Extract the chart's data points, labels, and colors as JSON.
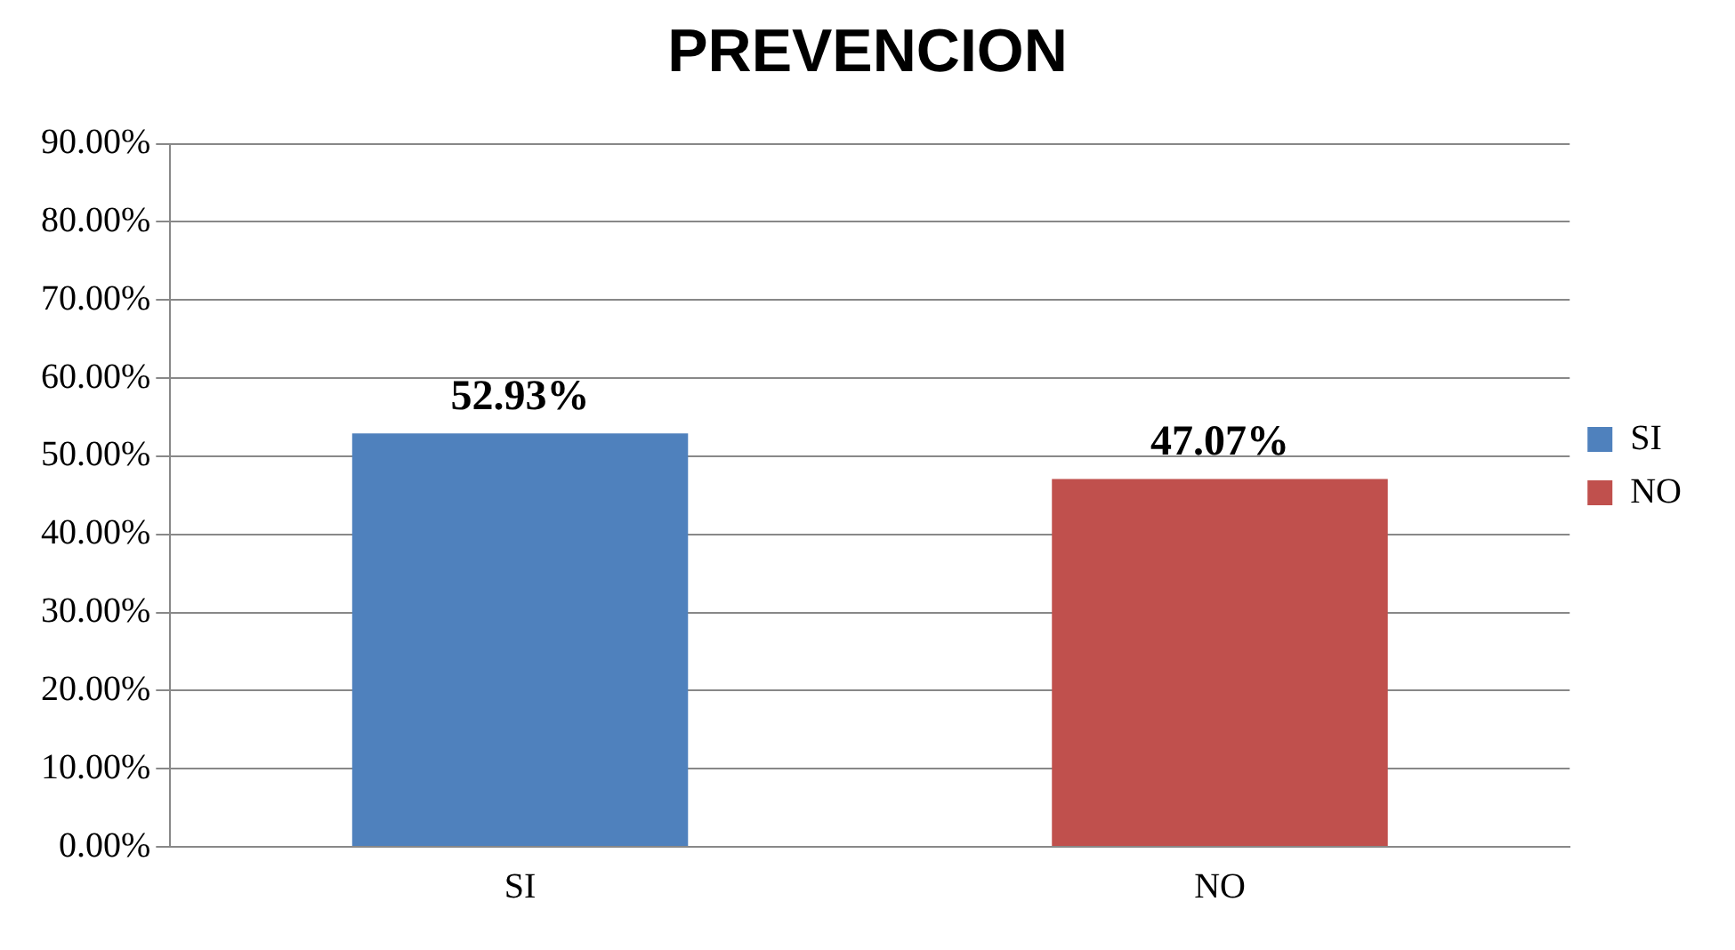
{
  "chart_data": {
    "type": "bar",
    "title": "PREVENCION",
    "categories": [
      "SI",
      "NO"
    ],
    "series": [
      {
        "name": "SI",
        "color": "#4f81bd",
        "values": [
          52.93,
          null
        ],
        "value_labels": [
          "52.93%",
          null
        ]
      },
      {
        "name": "NO",
        "color": "#c0504d",
        "values": [
          null,
          47.07
        ],
        "value_labels": [
          null,
          "47.07%"
        ]
      }
    ],
    "ylim": [
      0,
      90
    ],
    "yticks": [
      {
        "value": 0,
        "label": "0.00%"
      },
      {
        "value": 10,
        "label": "10.00%"
      },
      {
        "value": 20,
        "label": "20.00%"
      },
      {
        "value": 30,
        "label": "30.00%"
      },
      {
        "value": 40,
        "label": "40.00%"
      },
      {
        "value": 50,
        "label": "50.00%"
      },
      {
        "value": 60,
        "label": "60.00%"
      },
      {
        "value": 70,
        "label": "70.00%"
      },
      {
        "value": 80,
        "label": "80.00%"
      },
      {
        "value": 90,
        "label": "90.00%"
      }
    ],
    "grid": "y",
    "legend": "right"
  }
}
